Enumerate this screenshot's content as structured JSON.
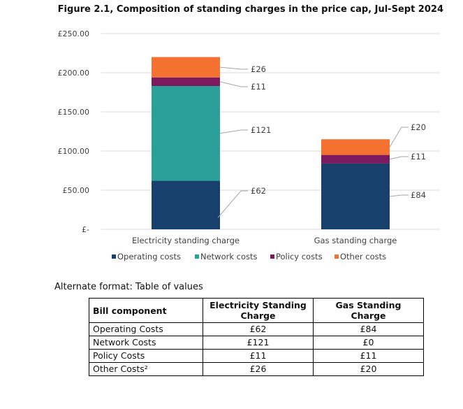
{
  "chart_data": {
    "type": "bar",
    "stacked": true,
    "title": "Figure 2.1, Composition of standing charges in the price cap, Jul-Sept 2024",
    "categories": [
      "Electricity standing charge",
      "Gas standing charge"
    ],
    "series": [
      {
        "name": "Operating costs",
        "values": [
          62,
          84
        ],
        "color": "#17406d"
      },
      {
        "name": "Network costs",
        "values": [
          121,
          0
        ],
        "color": "#2aa198"
      },
      {
        "name": "Policy costs",
        "values": [
          11,
          11
        ],
        "color": "#7b1a5e"
      },
      {
        "name": "Other costs",
        "values": [
          26,
          20
        ],
        "color": "#f4712f"
      }
    ],
    "data_labels": [
      [
        "£62",
        "£84"
      ],
      [
        "£121",
        ""
      ],
      [
        "£11",
        "£11"
      ],
      [
        "£26",
        "£20"
      ]
    ],
    "ylim": [
      0,
      250
    ],
    "y_ticks": [
      0,
      50,
      100,
      150,
      200,
      250
    ],
    "y_tick_labels": [
      "£-",
      "£50.00",
      "£100.00",
      "£150.00",
      "£200.00",
      "£250.00"
    ],
    "grid": true,
    "legend_position": "bottom"
  },
  "table": {
    "caption": "Alternate format: Table of values",
    "headers": [
      "Bill component",
      "Electricity Standing Charge",
      "Gas Standing Charge"
    ],
    "rows": [
      [
        "Operating Costs",
        "£62",
        "£84"
      ],
      [
        "Network Costs",
        "£121",
        "£0"
      ],
      [
        "Policy Costs",
        "£11",
        "£11"
      ],
      [
        "Other Costs²",
        "£26",
        "£20"
      ]
    ]
  }
}
